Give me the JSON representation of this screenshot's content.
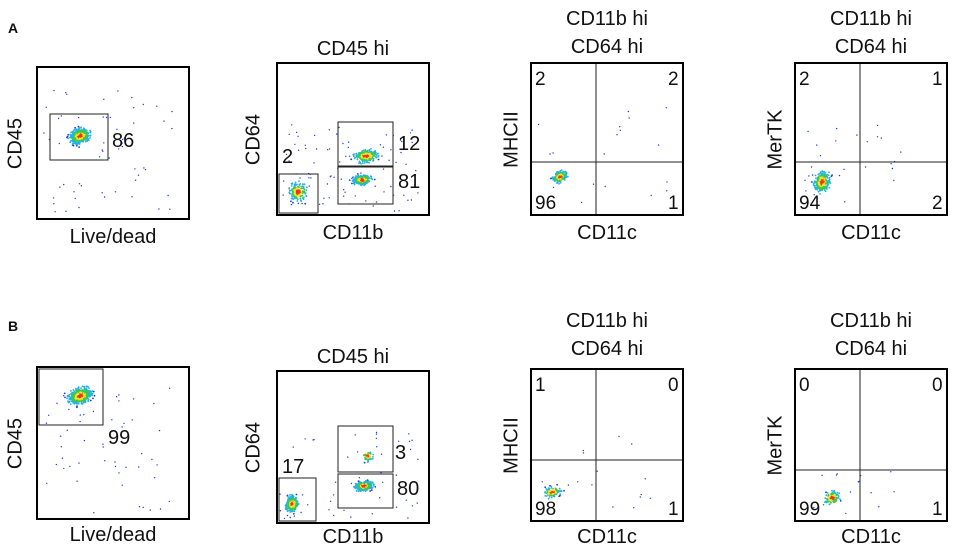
{
  "figure": {
    "rows": [
      {
        "label": "A"
      },
      {
        "label": "B"
      }
    ]
  },
  "chart_data": [
    {
      "type": "scatter",
      "row": "A",
      "panel": 1,
      "title": "",
      "xlabel": "Live/dead",
      "ylabel": "CD45",
      "gates": [
        {
          "name": "",
          "value": "86"
        }
      ]
    },
    {
      "type": "scatter",
      "row": "A",
      "panel": 2,
      "title": "CD45 hi",
      "xlabel": "CD11b",
      "ylabel": "CD64",
      "gates": [
        {
          "value": "2"
        },
        {
          "value": "12"
        },
        {
          "value": "81"
        }
      ]
    },
    {
      "type": "scatter",
      "row": "A",
      "panel": 3,
      "title_lines": [
        "CD11b hi",
        "CD64 hi"
      ],
      "xlabel": "CD11c",
      "ylabel": "MHCII",
      "quadrants": {
        "top_left": "2",
        "top_right": "2",
        "bottom_left": "96",
        "bottom_right": "1"
      }
    },
    {
      "type": "scatter",
      "row": "A",
      "panel": 4,
      "title_lines": [
        "CD11b hi",
        "CD64 hi"
      ],
      "xlabel": "CD11c",
      "ylabel": "MerTK",
      "quadrants": {
        "top_left": "2",
        "top_right": "1",
        "bottom_left": "94",
        "bottom_right": "2"
      }
    },
    {
      "type": "scatter",
      "row": "B",
      "panel": 1,
      "title": "",
      "xlabel": "Live/dead",
      "ylabel": "CD45",
      "gates": [
        {
          "value": "99"
        }
      ]
    },
    {
      "type": "scatter",
      "row": "B",
      "panel": 2,
      "title": "CD45 hi",
      "xlabel": "CD11b",
      "ylabel": "CD64",
      "gates": [
        {
          "value": "17"
        },
        {
          "value": "3"
        },
        {
          "value": "80"
        }
      ]
    },
    {
      "type": "scatter",
      "row": "B",
      "panel": 3,
      "title_lines": [
        "CD11b hi",
        "CD64 hi"
      ],
      "xlabel": "CD11c",
      "ylabel": "MHCII",
      "quadrants": {
        "top_left": "1",
        "top_right": "0",
        "bottom_left": "98",
        "bottom_right": "1"
      }
    },
    {
      "type": "scatter",
      "row": "B",
      "panel": 4,
      "title_lines": [
        "CD11b hi",
        "CD64 hi"
      ],
      "xlabel": "CD11c",
      "ylabel": "MerTK",
      "quadrants": {
        "top_left": "0",
        "top_right": "0",
        "bottom_left": "99",
        "bottom_right": "1"
      }
    }
  ],
  "colors": {
    "density_low": "#1f3fd6",
    "density_mid": "#22b3e8",
    "density_high": "#3ec84a",
    "density_peak": "#f2e22a",
    "density_max": "#e8391f"
  }
}
